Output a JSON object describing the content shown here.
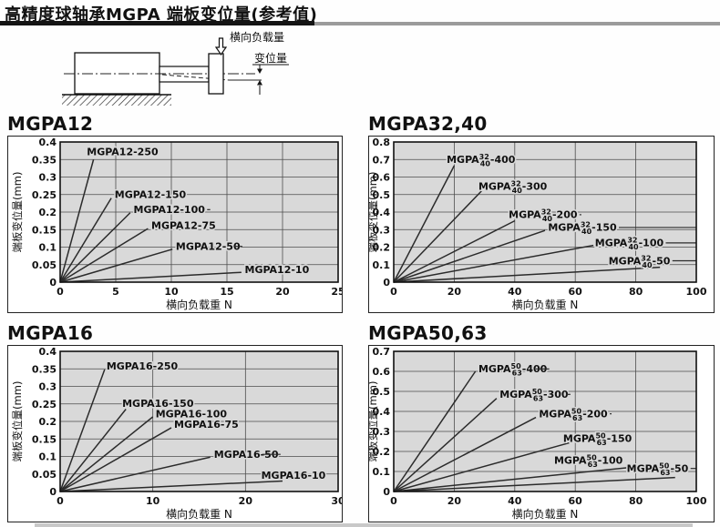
{
  "page": {
    "title": "高精度球轴承MGPA 端板变位量(参考值)"
  },
  "diagram": {
    "load_label": "横向负载量",
    "displacement_label": "变位量"
  },
  "colors": {
    "plot_bg": "#d9d9d9",
    "grid": "#4d4d4d",
    "line": "#2b2b2b",
    "frame": "#111111",
    "label_text": "#111111",
    "rule_black": "#141414",
    "rule_gray": "#9b9b9b"
  },
  "chart_data": [
    {
      "type": "line",
      "model": "MGPA12",
      "xlabel": "横向负载重 N",
      "ylabel": "端板变位量(mm)",
      "xlim": [
        0,
        25
      ],
      "xticks": [
        0,
        5,
        10,
        15,
        20,
        25
      ],
      "ylim": [
        0,
        0.4
      ],
      "yticks": [
        0,
        0.05,
        0.1,
        0.15,
        0.2,
        0.25,
        0.3,
        0.35,
        0.4
      ],
      "ytick_labels": [
        "0",
        "0.05",
        "0.1",
        "0.15",
        "0.2",
        "0.25",
        "0.3",
        "0.35",
        "0.4"
      ],
      "grid": true,
      "series": [
        {
          "label": "MGPA12-250",
          "x": [
            0,
            3.0
          ],
          "y": [
            0,
            0.35
          ],
          "label_at": [
            2.4,
            0.372
          ]
        },
        {
          "label": "MGPA12-150",
          "x": [
            0,
            4.6
          ],
          "y": [
            0,
            0.24
          ],
          "label_at": [
            4.9,
            0.25
          ]
        },
        {
          "label": "MGPA12-100",
          "x": [
            0,
            6.3
          ],
          "y": [
            0,
            0.198
          ],
          "label_at": [
            6.6,
            0.207
          ],
          "leader_to": 13.5
        },
        {
          "label": "MGPA12-75",
          "x": [
            0,
            7.9
          ],
          "y": [
            0,
            0.153
          ],
          "label_at": [
            8.2,
            0.162
          ]
        },
        {
          "label": "MGPA12-50",
          "x": [
            0,
            10.1
          ],
          "y": [
            0,
            0.094
          ],
          "label_at": [
            10.4,
            0.102
          ],
          "leader_to": 15.6
        },
        {
          "label": "MGPA12-10",
          "x": [
            0,
            16.3
          ],
          "y": [
            0,
            0.028
          ],
          "label_at": [
            16.6,
            0.036
          ]
        }
      ]
    },
    {
      "type": "line",
      "model": "MGPA32,40",
      "xlabel": "横向负载重 N",
      "ylabel": "端板变位量(mm)",
      "xlim": [
        0,
        100
      ],
      "xticks": [
        0,
        20,
        40,
        60,
        80,
        100
      ],
      "ylim": [
        0,
        0.8
      ],
      "yticks": [
        0,
        0.1,
        0.2,
        0.3,
        0.4,
        0.5,
        0.6,
        0.7,
        0.8
      ],
      "ytick_labels": [
        "0",
        "0.1",
        "0.2",
        "0.3",
        "0.4",
        "0.5",
        "0.6",
        "0.7",
        "0.8"
      ],
      "grid": true,
      "series": [
        {
          "label": {
            "prefix": "MGPA",
            "top": "32",
            "bottom": "40",
            "suffix": "-400"
          },
          "x": [
            0,
            20
          ],
          "y": [
            0,
            0.665
          ],
          "label_at": [
            17.5,
            0.7
          ]
        },
        {
          "label": {
            "prefix": "MGPA",
            "top": "32",
            "bottom": "40",
            "suffix": "-300"
          },
          "x": [
            0,
            29
          ],
          "y": [
            0,
            0.52
          ],
          "label_at": [
            28,
            0.548
          ]
        },
        {
          "label": {
            "prefix": "MGPA",
            "top": "32",
            "bottom": "40",
            "suffix": "-200"
          },
          "x": [
            0,
            40
          ],
          "y": [
            0,
            0.35
          ],
          "label_at": [
            38,
            0.385
          ],
          "leader_to": 62
        },
        {
          "label": {
            "prefix": "MGPA",
            "top": "32",
            "bottom": "40",
            "suffix": "-150"
          },
          "x": [
            0,
            50
          ],
          "y": [
            0,
            0.295
          ],
          "label_at": [
            51,
            0.312
          ],
          "leader_to": 100
        },
        {
          "label": {
            "prefix": "MGPA",
            "top": "32",
            "bottom": "40",
            "suffix": "-100"
          },
          "x": [
            0,
            66
          ],
          "y": [
            0,
            0.21
          ],
          "label_at": [
            66.5,
            0.224
          ],
          "leader_to": 100
        },
        {
          "label": {
            "prefix": "MGPA",
            "top": "32",
            "bottom": "40",
            "suffix": "-50"
          },
          "x": [
            0,
            88
          ],
          "y": [
            0,
            0.085
          ],
          "label_at": [
            71,
            0.122
          ],
          "leader_to": 100
        }
      ]
    },
    {
      "type": "line",
      "model": "MGPA16",
      "xlabel": "横向负载重 N",
      "ylabel": "端板变位量(mm)",
      "xlim": [
        0,
        30
      ],
      "xticks": [
        0,
        10,
        20,
        30
      ],
      "ylim": [
        0,
        0.4
      ],
      "yticks": [
        0,
        0.05,
        0.1,
        0.15,
        0.2,
        0.25,
        0.3,
        0.35,
        0.4
      ],
      "ytick_labels": [
        "0",
        "0.05",
        "0.1",
        "0.15",
        "0.2",
        "0.25",
        "0.3",
        "0.35",
        "0.4"
      ],
      "grid": true,
      "series": [
        {
          "label": "MGPA16-250",
          "x": [
            0,
            4.8
          ],
          "y": [
            0,
            0.348
          ],
          "label_at": [
            5.0,
            0.358
          ]
        },
        {
          "label": "MGPA16-150",
          "x": [
            0,
            7.1
          ],
          "y": [
            0,
            0.235
          ],
          "label_at": [
            6.7,
            0.252
          ]
        },
        {
          "label": "MGPA16-100",
          "x": [
            0,
            10.0
          ],
          "y": [
            0,
            0.213
          ],
          "label_at": [
            10.3,
            0.222
          ]
        },
        {
          "label": "MGPA16-75",
          "x": [
            0,
            12.0
          ],
          "y": [
            0,
            0.182
          ],
          "label_at": [
            12.3,
            0.192
          ]
        },
        {
          "label": "MGPA16-50",
          "x": [
            0,
            16.2
          ],
          "y": [
            0,
            0.098
          ],
          "label_at": [
            16.6,
            0.106
          ],
          "leader_to": 21.8
        },
        {
          "label": "MGPA16-10",
          "x": [
            0,
            24.0
          ],
          "y": [
            0,
            0.03
          ],
          "label_at": [
            21.7,
            0.046
          ]
        }
      ]
    },
    {
      "type": "line",
      "model": "MGPA50,63",
      "xlabel": "横向负载重 N",
      "ylabel": "端板变位量(mm)",
      "xlim": [
        0,
        100
      ],
      "xticks": [
        0,
        20,
        40,
        60,
        80,
        100
      ],
      "ylim": [
        0,
        0.7
      ],
      "yticks": [
        0,
        0.1,
        0.2,
        0.3,
        0.4,
        0.5,
        0.6,
        0.7
      ],
      "ytick_labels": [
        "0",
        "0.1",
        "0.2",
        "0.3",
        "0.4",
        "0.5",
        "0.6",
        "0.7"
      ],
      "grid": true,
      "series": [
        {
          "label": {
            "prefix": "MGPA",
            "top": "50",
            "bottom": "63",
            "suffix": "-400"
          },
          "x": [
            0,
            27
          ],
          "y": [
            0,
            0.6
          ],
          "label_at": [
            28,
            0.612
          ],
          "leader_to": 47
        },
        {
          "label": {
            "prefix": "MGPA",
            "top": "50",
            "bottom": "63",
            "suffix": "-300"
          },
          "x": [
            0,
            34
          ],
          "y": [
            0,
            0.465
          ],
          "label_at": [
            35,
            0.485
          ],
          "leader_to": 57
        },
        {
          "label": {
            "prefix": "MGPA",
            "top": "50",
            "bottom": "63",
            "suffix": "-200"
          },
          "x": [
            0,
            47
          ],
          "y": [
            0,
            0.37
          ],
          "label_at": [
            48,
            0.388
          ],
          "leader_to": 72
        },
        {
          "label": {
            "prefix": "MGPA",
            "top": "50",
            "bottom": "63",
            "suffix": "-150"
          },
          "x": [
            0,
            58
          ],
          "y": [
            0,
            0.243
          ],
          "label_at": [
            56,
            0.266
          ]
        },
        {
          "label": {
            "prefix": "MGPA",
            "top": "50",
            "bottom": "63",
            "suffix": "-100"
          },
          "x": [
            0,
            78
          ],
          "y": [
            0,
            0.12
          ],
          "label_at": [
            53,
            0.155
          ]
        },
        {
          "label": {
            "prefix": "MGPA",
            "top": "50",
            "bottom": "63",
            "suffix": "-50"
          },
          "x": [
            0,
            93
          ],
          "y": [
            0,
            0.07
          ],
          "label_at": [
            77,
            0.115
          ],
          "leader_to": 100
        }
      ]
    }
  ]
}
